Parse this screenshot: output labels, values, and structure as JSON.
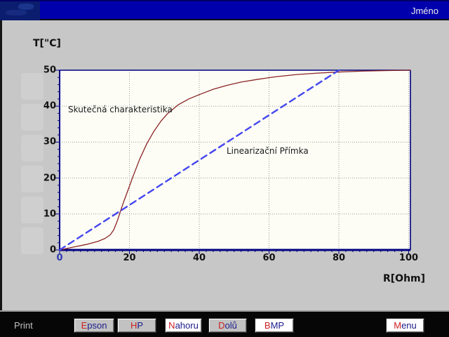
{
  "topbar": {
    "title": "Jméno"
  },
  "chart": {
    "y_axis_title": "T[\"C]",
    "x_axis_title": "R[Ohm]",
    "annotation_curve": "Skutečná charakteristika",
    "annotation_line": "Linearizační Přímka"
  },
  "chart_data": {
    "type": "line",
    "title": "",
    "xlabel": "R[Ohm]",
    "ylabel": "T[\"C]",
    "xlim": [
      0,
      100.5
    ],
    "ylim": [
      0,
      50
    ],
    "x_ticks": [
      0,
      20,
      40,
      60,
      80,
      100
    ],
    "y_ticks": [
      0,
      10,
      20,
      30,
      40,
      50
    ],
    "minor_tick_step": 2,
    "grid": true,
    "legend_position": "none",
    "series": [
      {
        "name": "Skutečná charakteristika",
        "color": "#8b2525",
        "style": "solid",
        "x": [
          0,
          4,
          8,
          11,
          13,
          14.5,
          15.5,
          16.5,
          17.5,
          18.5,
          19.5,
          21,
          23,
          25,
          27,
          29,
          31,
          34,
          37,
          40,
          44,
          48,
          52,
          57,
          62,
          68,
          74,
          80,
          87,
          94,
          100.5
        ],
        "y": [
          0,
          0.8,
          1.6,
          2.4,
          3.2,
          4.2,
          5.6,
          8.0,
          11.0,
          13.8,
          16.4,
          20.4,
          25.4,
          29.6,
          33.0,
          35.8,
          38.0,
          40.4,
          42.0,
          43.2,
          44.7,
          45.8,
          46.7,
          47.5,
          48.2,
          48.8,
          49.2,
          49.5,
          49.75,
          49.9,
          50
        ]
      },
      {
        "name": "Linearizační Přímka",
        "color": "#4446ee",
        "style": "dashed",
        "x": [
          0,
          80
        ],
        "y": [
          0,
          50
        ]
      }
    ]
  },
  "toolbar": {
    "label": "Print",
    "buttons": [
      {
        "label": "Epson",
        "variant": "gray"
      },
      {
        "label": "HP",
        "variant": "gray"
      },
      {
        "label": "Nahoru",
        "variant": "white"
      },
      {
        "label": "Dolů",
        "variant": "gray"
      },
      {
        "label": "BMP",
        "variant": "white"
      },
      {
        "label": "Menu",
        "variant": "white"
      }
    ]
  },
  "colors": {
    "topbar_blue": "#0000ac",
    "axis_navy": "#000080",
    "curve_red": "#8b2525",
    "line_blue": "#4446ee",
    "hotkey_red": "#cc2020",
    "button_text_navy": "#1a1a8c"
  }
}
